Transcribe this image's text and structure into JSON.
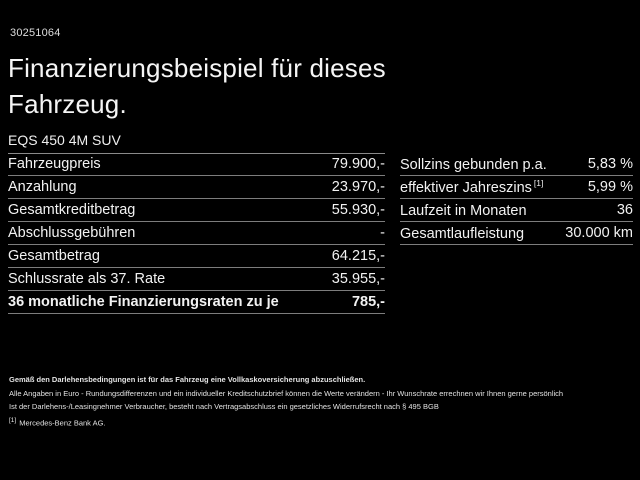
{
  "colors": {
    "background": "#000000",
    "text": "#f2f2f2",
    "divider": "#7d7d7d"
  },
  "header": {
    "document_id": "30251064",
    "title": "Finanzierungsbeispiel für dieses Fahrzeug.",
    "model": "EQS 450 4M SUV"
  },
  "left_table": {
    "rows": [
      {
        "label": "Fahrzeugpreis",
        "value": "79.900,-"
      },
      {
        "label": "Anzahlung",
        "value": "23.970,-"
      },
      {
        "label": "Gesamtkreditbetrag",
        "value": "55.930,-"
      },
      {
        "label": "Abschlussgebühren",
        "value": "-"
      },
      {
        "label": "Gesamtbetrag",
        "value": "64.215,-"
      },
      {
        "label": "Schlussrate als 37. Rate",
        "value": "35.955,-"
      },
      {
        "label": "36 monatliche Finanzierungsraten zu je",
        "value": "785,-"
      }
    ]
  },
  "right_table": {
    "rows": [
      {
        "label": "Sollzins gebunden p.a.",
        "value": "5,83 %"
      },
      {
        "label": "effektiver Jahreszins",
        "sup": "[1]",
        "value": "5,99 %"
      },
      {
        "label": "Laufzeit in Monaten",
        "value": "36"
      },
      {
        "label": "Gesamtlaufleistung",
        "value": "30.000 km"
      }
    ]
  },
  "fineprint": {
    "disclaimer": "Gemäß den Darlehensbedingungen ist für das Fahrzeug eine Vollkaskoversicherung abzuschließen.",
    "line2": "Alle Angaben in Euro - Rundungsdifferenzen und ein individueller Kreditschutzbrief können die Werte verändern - Ihr Wunschrate errechnen wir Ihnen gerne persönlich",
    "line3": "Ist der Darlehens-/Leasingnehmer Verbraucher, besteht nach Vertragsabschluss ein gesetzliches Widerrufsrecht nach § 495 BGB",
    "footnote_marker": "[1]",
    "footnote_text": "Mercedes-Benz Bank AG."
  }
}
